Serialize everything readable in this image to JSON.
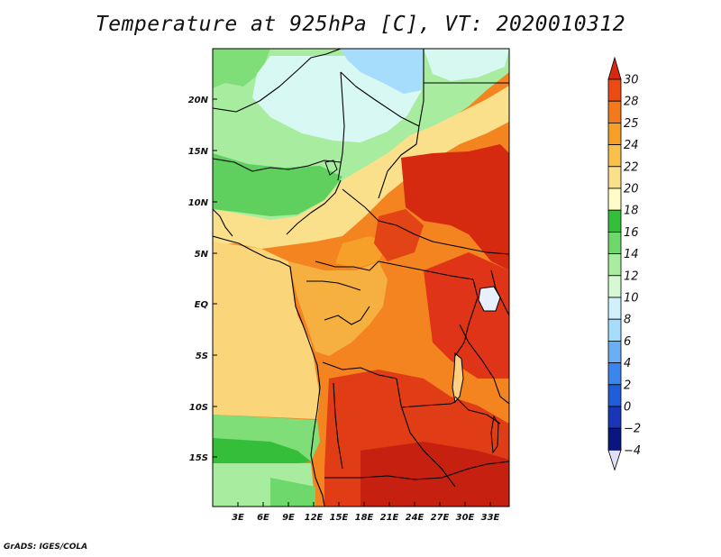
{
  "title": "Temperature at 925hPa [C], VT: 2020010312",
  "credit": "GrADS: IGES/COLA",
  "map": {
    "lat_ticks": [
      "20N",
      "15N",
      "10N",
      "5N",
      "EQ",
      "5S",
      "10S",
      "15S"
    ],
    "lon_ticks": [
      "3E",
      "6E",
      "9E",
      "12E",
      "15E",
      "18E",
      "21E",
      "24E",
      "27E",
      "30E",
      "33E"
    ]
  },
  "colorbar": {
    "labels": [
      "30",
      "28",
      "25",
      "24",
      "22",
      "20",
      "18",
      "16",
      "14",
      "12",
      "10",
      "8",
      "6",
      "4",
      "2",
      "0",
      "−2",
      "−4"
    ],
    "colors": [
      "#d52a10",
      "#ea4c14",
      "#f37a1c",
      "#f6a02a",
      "#fbc04c",
      "#fbe08c",
      "#fffcc8",
      "#34be3a",
      "#6fd86c",
      "#a8eca0",
      "#d6f8d2",
      "#d0f0fc",
      "#a6dcfc",
      "#6aaef4",
      "#3a86ec",
      "#1f5ed8",
      "#1a36b8",
      "#0a1680",
      "#e0e0f8"
    ]
  }
}
